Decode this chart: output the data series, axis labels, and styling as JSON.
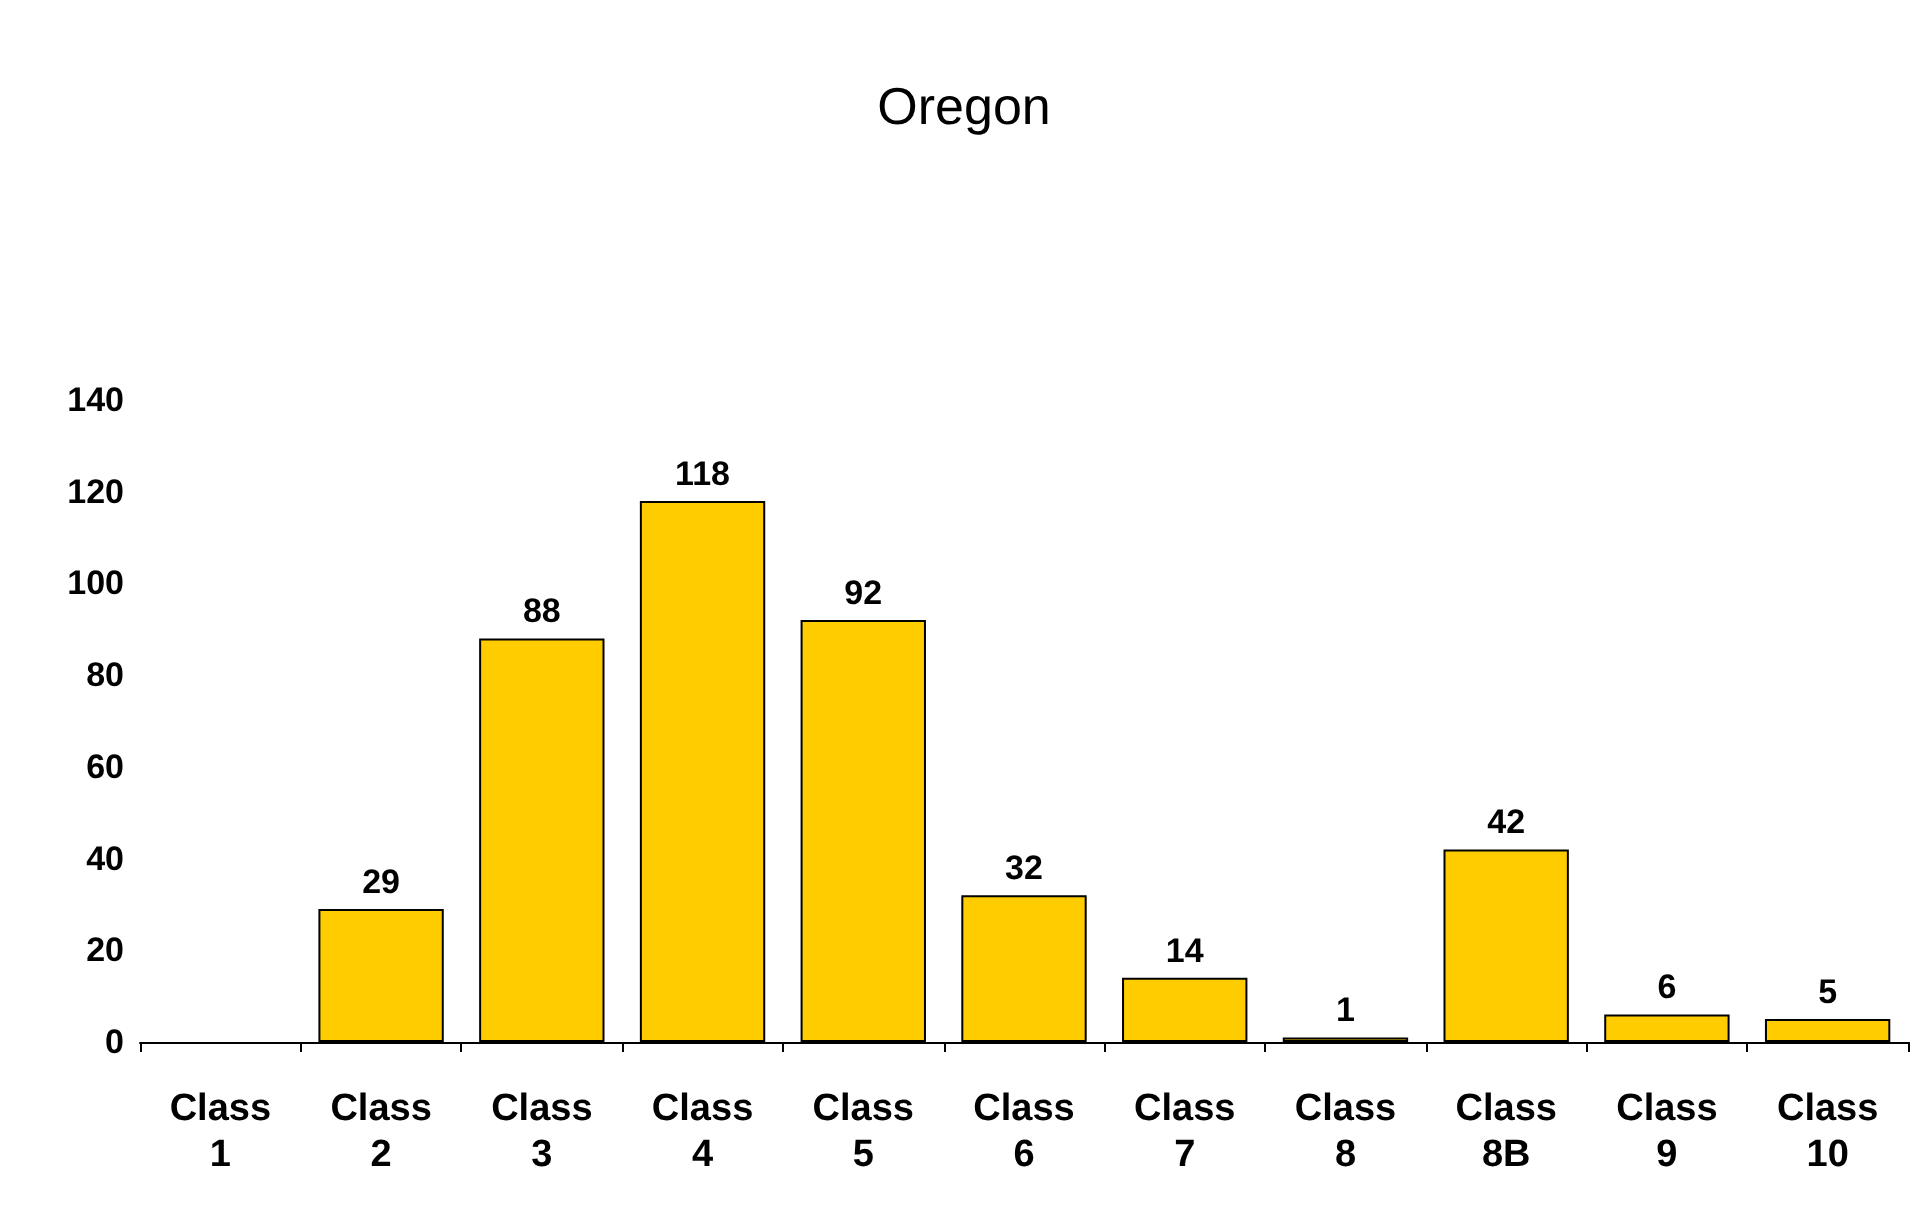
{
  "chart_data": {
    "type": "bar",
    "title": "Oregon",
    "categories": [
      "Class 1",
      "Class 2",
      "Class 3",
      "Class 4",
      "Class 5",
      "Class 6",
      "Class 7",
      "Class 8",
      "Class 8B",
      "Class 9",
      "Class 10"
    ],
    "values": [
      null,
      29,
      88,
      118,
      92,
      32,
      14,
      1,
      42,
      6,
      5
    ],
    "color": "#ffcc00",
    "ylim": [
      0,
      140
    ],
    "yticks": [
      0,
      20,
      40,
      60,
      80,
      100,
      120,
      140
    ],
    "data_labels": true
  }
}
